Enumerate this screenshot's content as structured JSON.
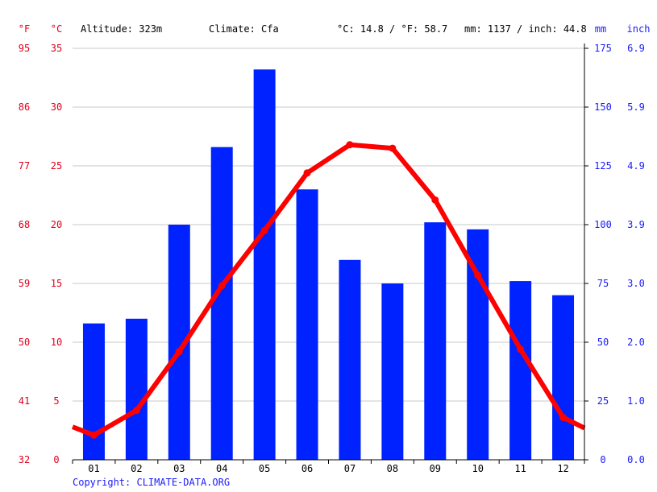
{
  "header": {
    "altitude": "Altitude: 323m",
    "climate": "Climate: Cfa",
    "temperature": "°C: 14.8 / °F: 58.7",
    "precipitation": "mm: 1137 / inch: 44.8"
  },
  "axis_units": {
    "fahrenheit": "°F",
    "celsius": "°C",
    "mm": "mm",
    "inch": "inch"
  },
  "copyright": "Copyright: CLIMATE-DATA.ORG",
  "colors": {
    "temperature": "#ff0000",
    "precipitation": "#0022ff",
    "temp_axis_text": "#e0001a",
    "precip_axis_text": "#1a1aff",
    "grid": "#c8c8c8"
  },
  "chart_data": {
    "type": "bar",
    "categories": [
      "01",
      "02",
      "03",
      "04",
      "05",
      "06",
      "07",
      "08",
      "09",
      "10",
      "11",
      "12"
    ],
    "precipitation": {
      "axis": "mm",
      "values": [
        58,
        60,
        100,
        133,
        166,
        115,
        85,
        75,
        101,
        98,
        76,
        70
      ],
      "ylim": [
        0,
        175
      ],
      "ticks": [
        0,
        25,
        50,
        75,
        100,
        125,
        150,
        175
      ],
      "inch_ticks": [
        "0.0",
        "1.0",
        "2.0",
        "3.0",
        "3.9",
        "4.9",
        "5.9",
        "6.9"
      ]
    },
    "temperature": {
      "axis": "°C",
      "values": [
        2.1,
        4.2,
        9.2,
        14.8,
        19.5,
        24.4,
        26.8,
        26.5,
        22.1,
        15.7,
        9.4,
        3.6
      ],
      "edge_start": 2.8,
      "edge_end": 2.7,
      "ylim": [
        0,
        35
      ],
      "ticks": [
        0,
        5,
        10,
        15,
        20,
        25,
        30,
        35
      ],
      "fahrenheit_ticks": [
        "32",
        "41",
        "50",
        "59",
        "68",
        "77",
        "86",
        "95"
      ]
    },
    "grid": true
  }
}
